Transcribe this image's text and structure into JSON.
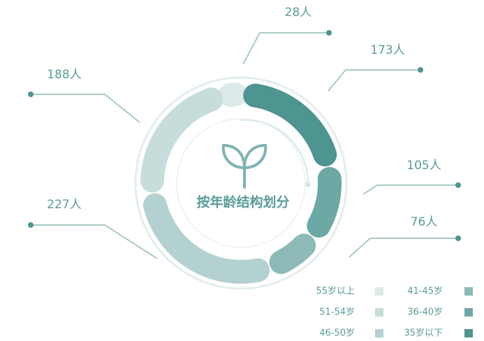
{
  "chart_data": {
    "type": "donut",
    "title": "按年龄结构划分",
    "categories": [
      "35岁以下",
      "36-40岁",
      "41-45岁",
      "46-50岁",
      "51-54岁",
      "55岁以上"
    ],
    "values": [
      173,
      105,
      76,
      227,
      188,
      28
    ],
    "value_labels": [
      "173人",
      "105人",
      "76人",
      "227人",
      "188人",
      "28人"
    ],
    "colors": [
      "#4e9490",
      "#6ca8a4",
      "#8dbab7",
      "#b2d1d0",
      "#c6dddc",
      "#dcebea"
    ],
    "legend": "bottom-right"
  }
}
